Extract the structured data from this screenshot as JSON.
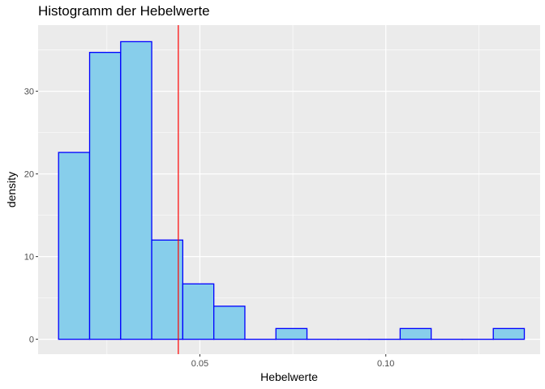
{
  "chart_data": {
    "type": "bar",
    "title": "Histogramm der Hebelwerte",
    "xlabel": "Hebelwerte",
    "ylabel": "density",
    "xlim": [
      0.0065,
      0.1415
    ],
    "ylim": [
      -1.8,
      38.0
    ],
    "grid": true,
    "bin_width": 0.00835,
    "bins": [
      {
        "x0": 0.012,
        "x1": 0.02035,
        "density": 22.6
      },
      {
        "x0": 0.02035,
        "x1": 0.0287,
        "density": 34.7
      },
      {
        "x0": 0.0287,
        "x1": 0.03705,
        "density": 36.0
      },
      {
        "x0": 0.03705,
        "x1": 0.0454,
        "density": 12.0
      },
      {
        "x0": 0.0454,
        "x1": 0.05375,
        "density": 6.7
      },
      {
        "x0": 0.05375,
        "x1": 0.0621,
        "density": 4.0
      },
      {
        "x0": 0.0621,
        "x1": 0.07045,
        "density": 0.0
      },
      {
        "x0": 0.07045,
        "x1": 0.0788,
        "density": 1.3
      },
      {
        "x0": 0.0788,
        "x1": 0.08715,
        "density": 0.0
      },
      {
        "x0": 0.08715,
        "x1": 0.0955,
        "density": 0.0
      },
      {
        "x0": 0.0955,
        "x1": 0.10385,
        "density": 0.0
      },
      {
        "x0": 0.10385,
        "x1": 0.1122,
        "density": 1.3
      },
      {
        "x0": 0.1122,
        "x1": 0.12055,
        "density": 0.0
      },
      {
        "x0": 0.12055,
        "x1": 0.1289,
        "density": 0.0
      },
      {
        "x0": 0.1289,
        "x1": 0.13725,
        "density": 1.3
      }
    ],
    "x_ticks": [
      0.05,
      0.1
    ],
    "x_tick_labels": [
      "0.05",
      "0.10"
    ],
    "y_ticks": [
      0,
      10,
      20,
      30
    ],
    "y_tick_labels": [
      "0",
      "10",
      "20",
      "30"
    ],
    "reference_line_x": 0.0442,
    "colors": {
      "panel_background": "#ebebeb",
      "grid_major": "#ffffff",
      "bar_fill": "#87ceeb",
      "bar_outline": "#0000ff",
      "reference_line": "#ff0000"
    }
  }
}
